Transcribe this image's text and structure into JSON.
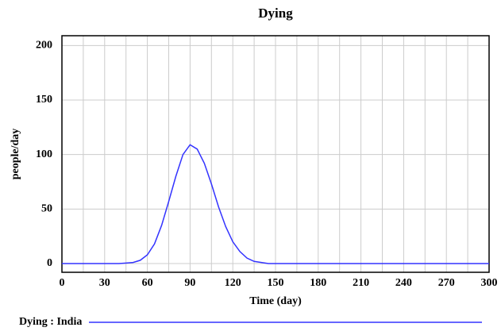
{
  "chart_data": {
    "type": "line",
    "title": "Dying",
    "x_label": "Time (day)",
    "y_label": "people/day",
    "x": [
      0,
      10,
      20,
      30,
      40,
      45,
      50,
      55,
      60,
      65,
      70,
      75,
      80,
      85,
      90,
      95,
      100,
      105,
      110,
      115,
      120,
      125,
      130,
      135,
      140,
      145,
      150,
      200,
      250,
      300
    ],
    "series": [
      {
        "name": "Dying : India",
        "color": "#3333ff",
        "values": [
          0,
          0,
          0,
          0,
          0,
          0.5,
          1,
          3,
          8,
          18,
          35,
          57,
          80,
          100,
          109,
          105,
          92,
          73,
          52,
          34,
          20,
          11,
          5,
          2,
          1,
          0,
          0,
          0,
          0,
          0
        ]
      }
    ],
    "xlim": [
      0,
      300
    ],
    "xticks": [
      0,
      30,
      60,
      90,
      120,
      150,
      180,
      210,
      240,
      270,
      300
    ],
    "x_minor_grid": [
      15,
      45,
      75,
      105,
      135,
      165,
      195,
      225,
      255,
      285
    ],
    "ylim": [
      -8,
      209
    ],
    "yticks": [
      0,
      50,
      100,
      150,
      200
    ],
    "grid": true
  }
}
